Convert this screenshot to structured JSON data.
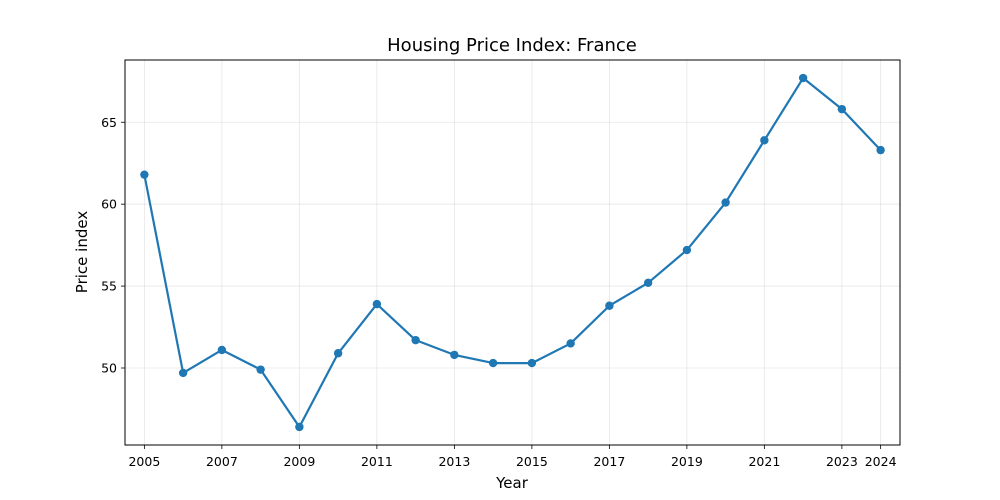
{
  "chart_data": {
    "type": "line",
    "title": "Housing Price Index: France",
    "xlabel": "Year",
    "ylabel": "Price index",
    "x": [
      2005,
      2006,
      2007,
      2008,
      2009,
      2010,
      2011,
      2012,
      2013,
      2014,
      2015,
      2016,
      2017,
      2018,
      2019,
      2020,
      2021,
      2022,
      2023,
      2024
    ],
    "series": [
      {
        "values": [
          61.8,
          49.7,
          51.1,
          49.9,
          46.4,
          50.9,
          53.9,
          51.7,
          50.8,
          50.3,
          50.3,
          51.5,
          53.8,
          55.2,
          57.2,
          60.1,
          63.9,
          67.7,
          65.8,
          63.3
        ],
        "color": "#1f77b4",
        "marker": "circle"
      }
    ],
    "xticks": [
      "2005",
      "2007",
      "2009",
      "2011",
      "2013",
      "2015",
      "2017",
      "2019",
      "2021",
      "2023",
      "2024"
    ],
    "yticks": [
      "50",
      "55",
      "60",
      "65"
    ],
    "xlim": [
      2004.5,
      2024.5
    ],
    "ylim": [
      45.3,
      68.8
    ],
    "grid": true
  }
}
